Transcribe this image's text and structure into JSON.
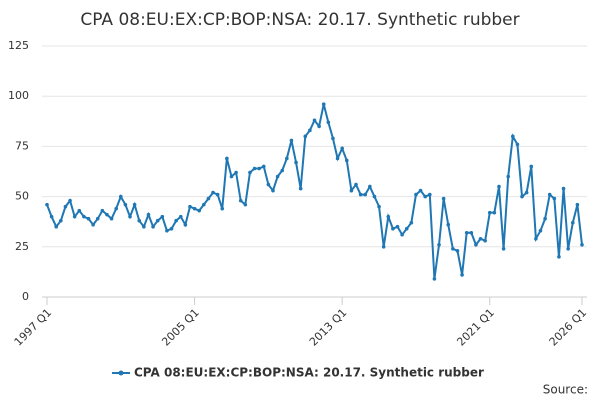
{
  "chart_data": {
    "type": "line",
    "title": "CPA 08:EU:EX:CP:BOP:NSA: 20.17. Synthetic rubber",
    "source": "Source:",
    "categories": [
      "1997 Q1",
      null,
      null,
      null,
      null,
      null,
      null,
      null,
      null,
      null,
      null,
      null,
      null,
      null,
      null,
      null,
      null,
      null,
      null,
      null,
      null,
      null,
      null,
      null,
      null,
      null,
      null,
      null,
      null,
      null,
      null,
      null,
      "2005 Q1",
      null,
      null,
      null,
      null,
      null,
      null,
      null,
      null,
      null,
      null,
      null,
      null,
      null,
      null,
      null,
      null,
      null,
      null,
      null,
      null,
      null,
      null,
      null,
      null,
      null,
      null,
      null,
      null,
      null,
      null,
      null,
      "2013 Q1",
      null,
      null,
      null,
      null,
      null,
      null,
      null,
      null,
      null,
      null,
      null,
      null,
      null,
      null,
      null,
      null,
      null,
      null,
      null,
      null,
      null,
      null,
      null,
      null,
      null,
      null,
      null,
      null,
      null,
      null,
      null,
      "2021 Q1",
      null,
      null,
      null,
      null,
      null,
      null,
      null,
      null,
      null,
      null,
      null,
      null,
      null,
      null,
      null,
      null,
      null,
      null,
      null,
      "2026 Q1"
    ],
    "series": [
      {
        "name": "CPA 08:EU:EX:CP:BOP:NSA: 20.17. Synthetic rubber",
        "color": "#1f77b4",
        "values": [
          46,
          40,
          35,
          38,
          45,
          48,
          40,
          43,
          40,
          39,
          36,
          39,
          43,
          41,
          39,
          44,
          50,
          46,
          40,
          46,
          38,
          35,
          41,
          35,
          38,
          40,
          33,
          34,
          38,
          40,
          36,
          45,
          44,
          43,
          46,
          49,
          52,
          51,
          44,
          69,
          60,
          62,
          48,
          46,
          62,
          64,
          64,
          65,
          56,
          53,
          60,
          63,
          69,
          78,
          67,
          54,
          80,
          83,
          88,
          85,
          96,
          87,
          79,
          69,
          74,
          68,
          53,
          56,
          51,
          51,
          55,
          50,
          45,
          25,
          40,
          34,
          35,
          31,
          34,
          37,
          51,
          53,
          50,
          51,
          9,
          26,
          49,
          36,
          24,
          23,
          11,
          32,
          32,
          26,
          29,
          28,
          42,
          42,
          55,
          24,
          60,
          80,
          76,
          50,
          52,
          65,
          29,
          33,
          39,
          51,
          49,
          20,
          54,
          24,
          37,
          46,
          26
        ]
      }
    ],
    "ylim": [
      0,
      125
    ],
    "yticks": [
      0,
      25,
      50,
      75,
      100,
      125
    ],
    "grid": true,
    "legend": "bottom"
  }
}
